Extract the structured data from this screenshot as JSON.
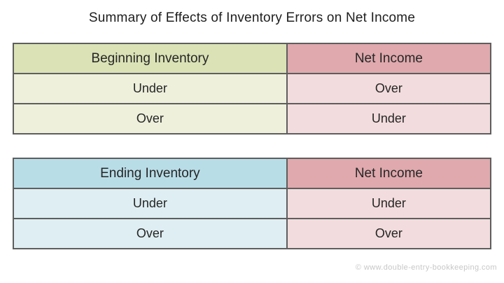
{
  "page": {
    "title": "Summary of Effects of Inventory Errors on Net Income",
    "watermark": "© www.double-entry-bookkeeping.com"
  },
  "colors": {
    "green_header": "#dae2b6",
    "green_row": "#eef0dc",
    "pink_header": "#dfa9ad",
    "pink_row": "#f3dcdd",
    "blue_header": "#b9dde7",
    "blue_row": "#dfeef2",
    "border": "#5e5e5e",
    "text": "#262626",
    "footer_text": "#c7c7c7"
  },
  "tables": [
    {
      "name": "beginning-inventory",
      "columns": [
        "Beginning Inventory",
        "Net Income"
      ],
      "rows": [
        {
          "inventory": "Under",
          "net_income": "Over"
        },
        {
          "inventory": "Over",
          "net_income": "Under"
        }
      ]
    },
    {
      "name": "ending-inventory",
      "columns": [
        "Ending Inventory",
        "Net Income"
      ],
      "rows": [
        {
          "inventory": "Under",
          "net_income": "Under"
        },
        {
          "inventory": "Over",
          "net_income": "Over"
        }
      ]
    }
  ]
}
